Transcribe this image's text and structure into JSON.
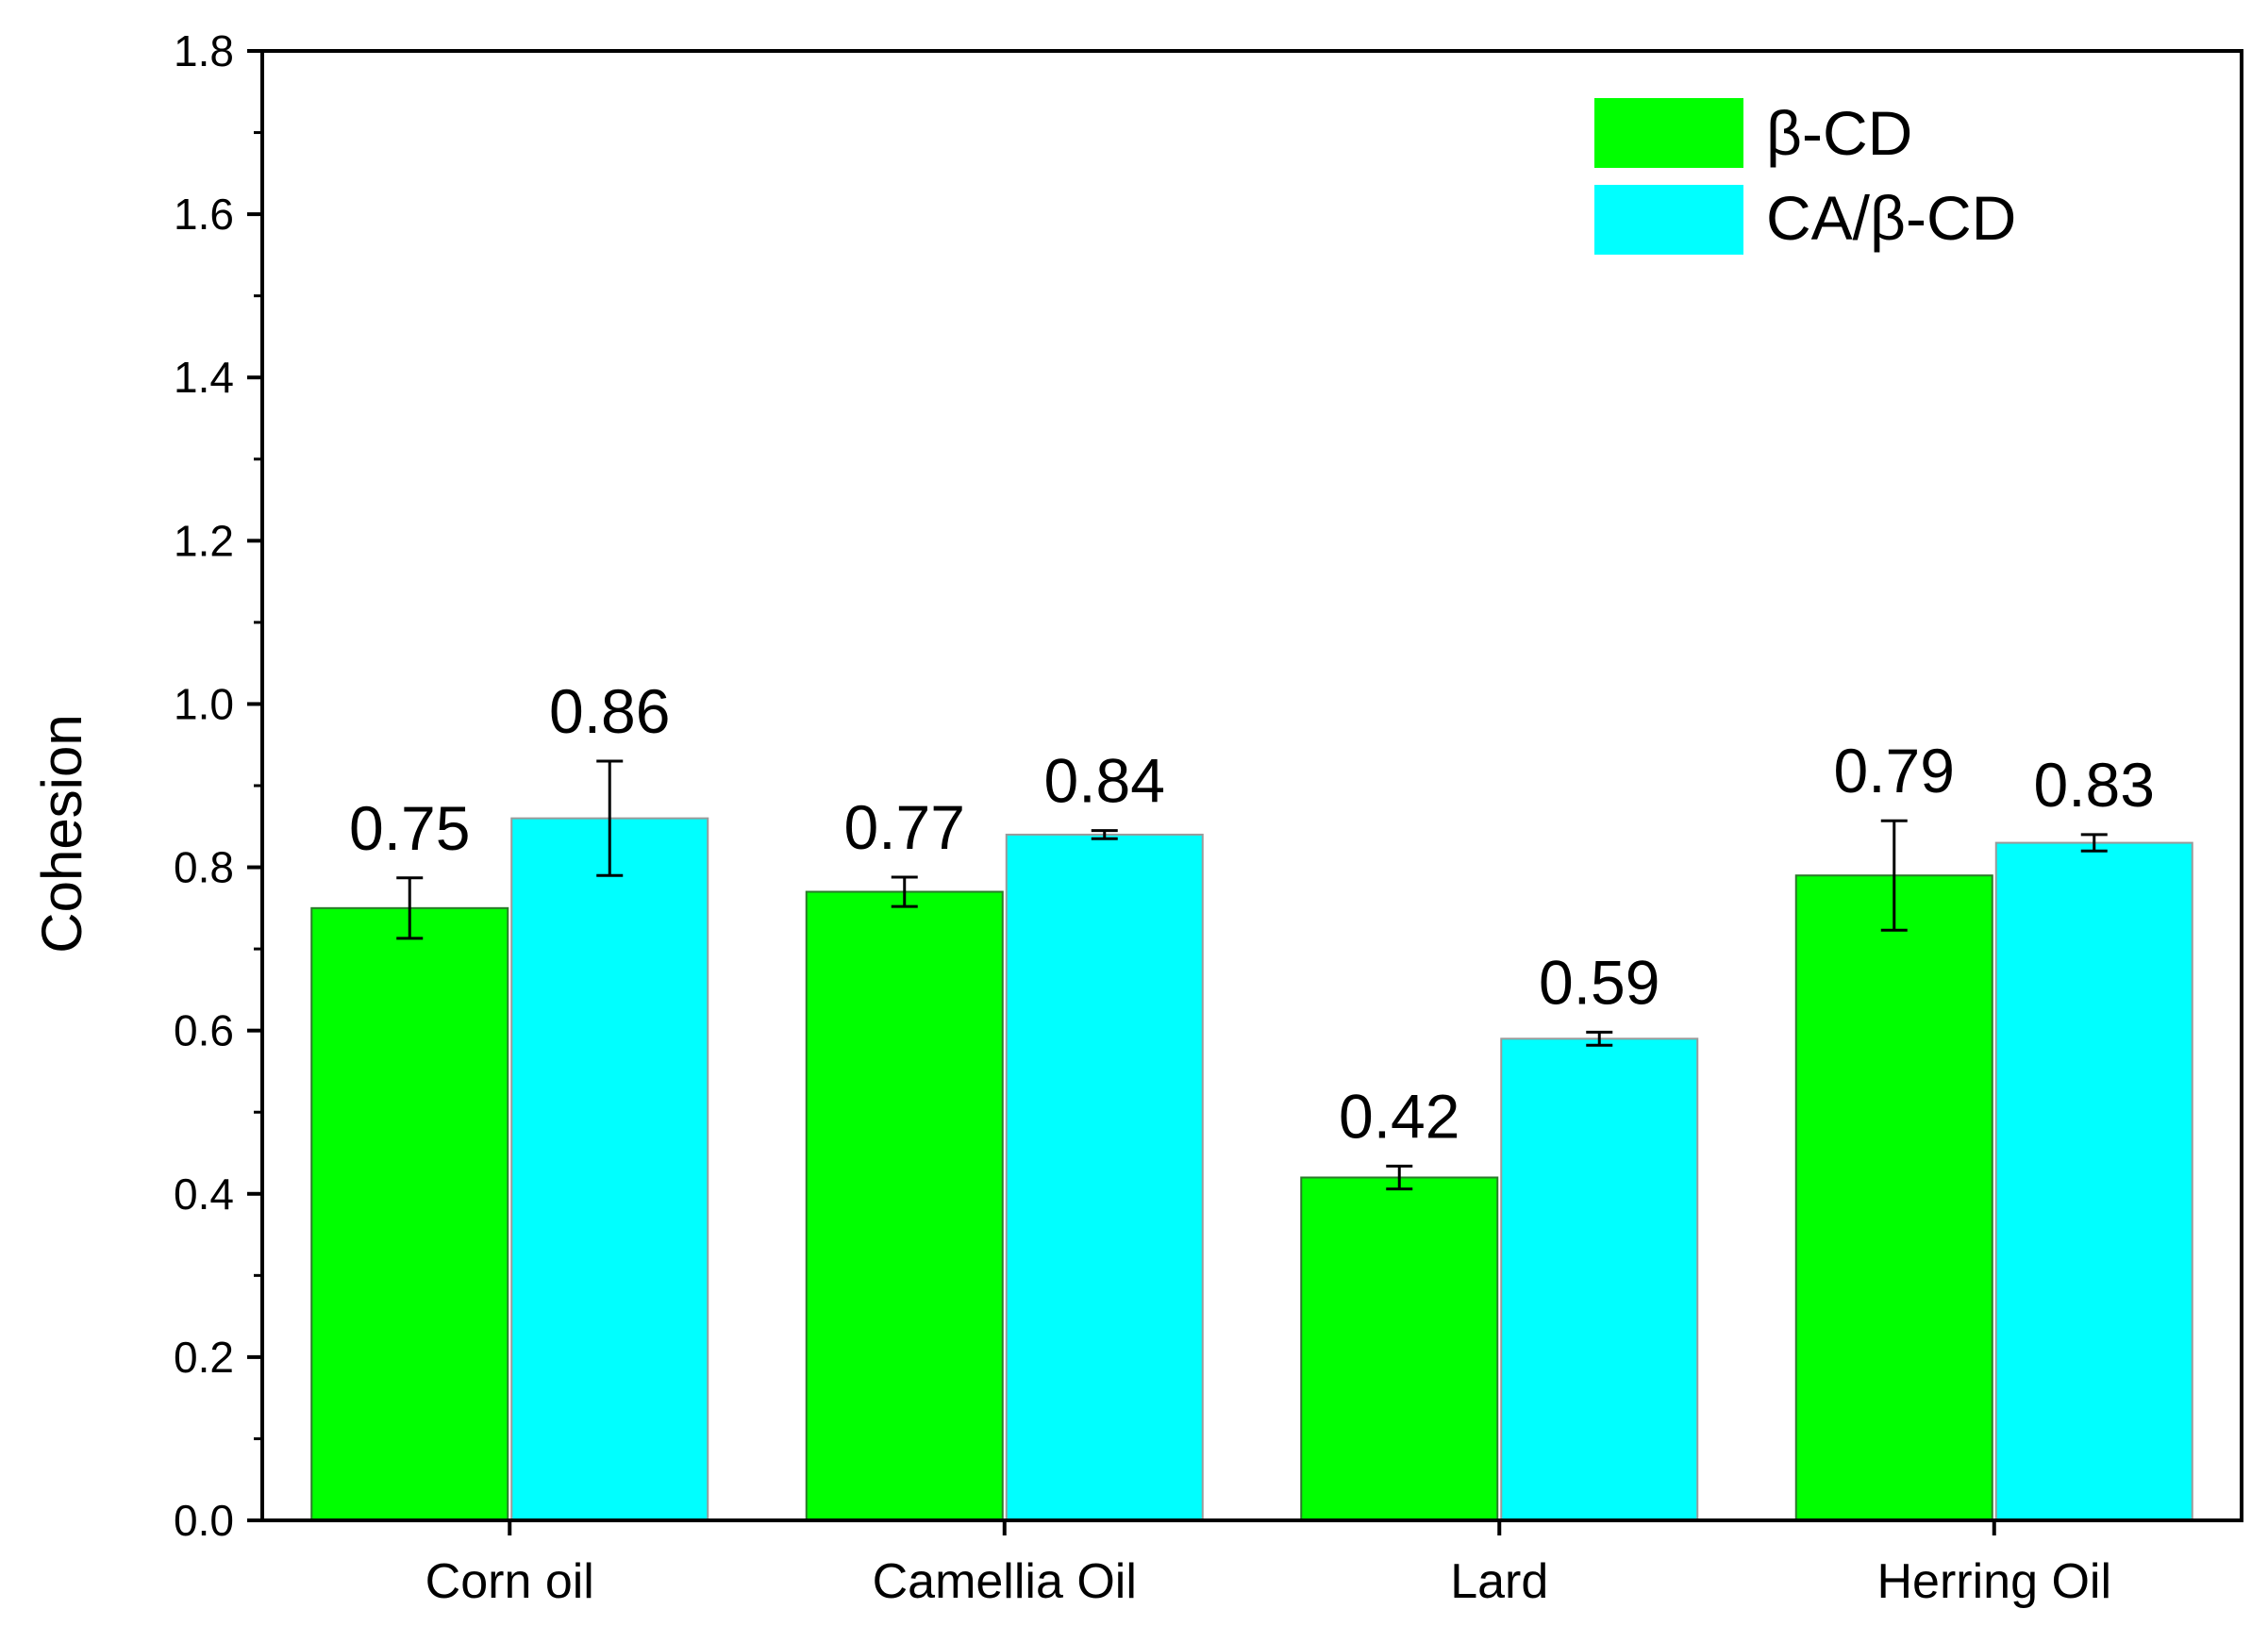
{
  "chart_data": {
    "type": "bar",
    "title": "",
    "xlabel": "",
    "ylabel": "Cohesion",
    "ylim": [
      0,
      1.8
    ],
    "y_ticks": [
      "0.0",
      "0.2",
      "0.4",
      "0.6",
      "0.8",
      "1.0",
      "1.2",
      "1.4",
      "1.6",
      "1.8"
    ],
    "y_tick_values": [
      0,
      0.2,
      0.4,
      0.6,
      0.8,
      1.0,
      1.2,
      1.4,
      1.6,
      1.8
    ],
    "categories": [
      "Corn oil",
      "Camellia Oil",
      "Lard",
      "Herring Oil"
    ],
    "legend_position": "top-right",
    "series": [
      {
        "name": "β-CD",
        "color": "#00ff00",
        "values": [
          0.75,
          0.77,
          0.42,
          0.79
        ],
        "errors": [
          0.037,
          0.018,
          0.014,
          0.067
        ],
        "labels": [
          "0.75",
          "0.77",
          "0.42",
          "0.79"
        ]
      },
      {
        "name": "CA/β-CD",
        "color": "#00ffff",
        "values": [
          0.86,
          0.84,
          0.59,
          0.83
        ],
        "errors": [
          0.07,
          0.005,
          0.008,
          0.01
        ],
        "labels": [
          "0.86",
          "0.84",
          "0.59",
          "0.83"
        ]
      }
    ]
  }
}
